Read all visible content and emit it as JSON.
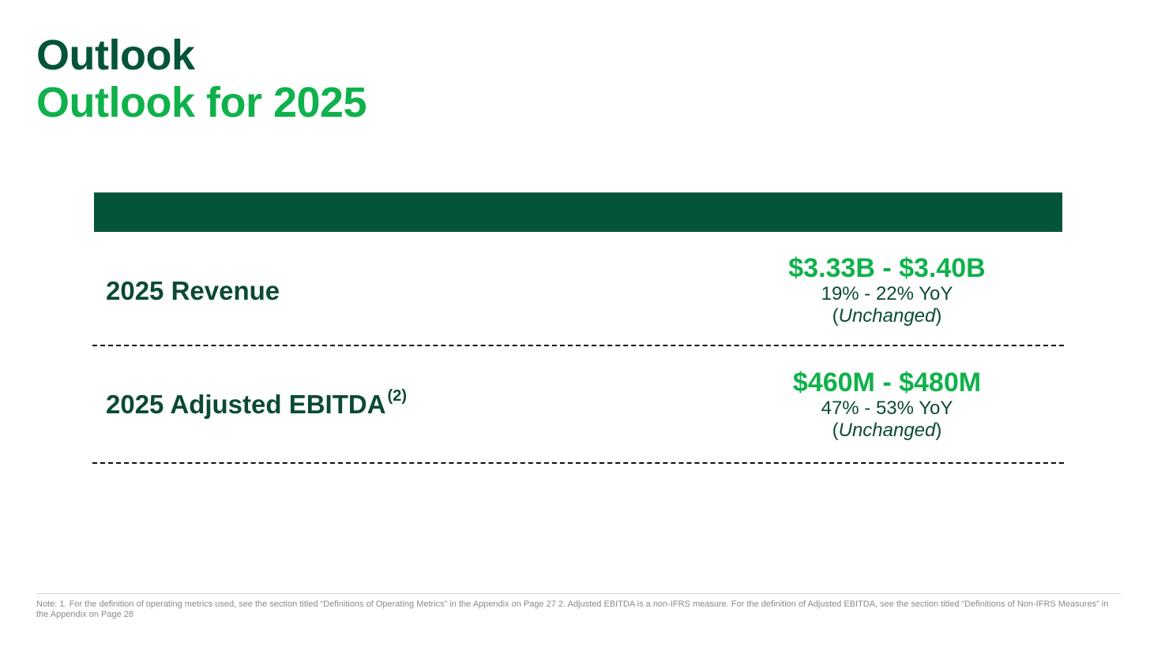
{
  "header": {
    "title": "Outlook",
    "subtitle": "Outlook for 2025"
  },
  "table": {
    "rows": [
      {
        "label": "2025 Revenue",
        "footnote_ref": "",
        "range": "$3.33B - $3.40B",
        "yoy": "19% - 22% YoY",
        "status_open": "(",
        "status": "Unchanged",
        "status_close": ")"
      },
      {
        "label": "2025 Adjusted EBITDA",
        "footnote_ref": "(2)",
        "range": "$460M - $480M",
        "yoy": "47% - 53% YoY",
        "status_open": "(",
        "status": "Unchanged",
        "status_close": ")"
      }
    ]
  },
  "footer": {
    "note": "Note: 1. For the definition of operating metrics used, see the section titled “Definitions of Operating Metrics” in the Appendix on Page 27 2. Adjusted EBITDA is a non-IFRS measure. For the definition of Adjusted EBITDA, see the section titled “Definitions of Non-IFRS Measures” in the Appendix on Page 28"
  },
  "colors": {
    "dark_green": "#04543a",
    "bright_green": "#0fb14b",
    "text_green": "#0b4a33"
  }
}
